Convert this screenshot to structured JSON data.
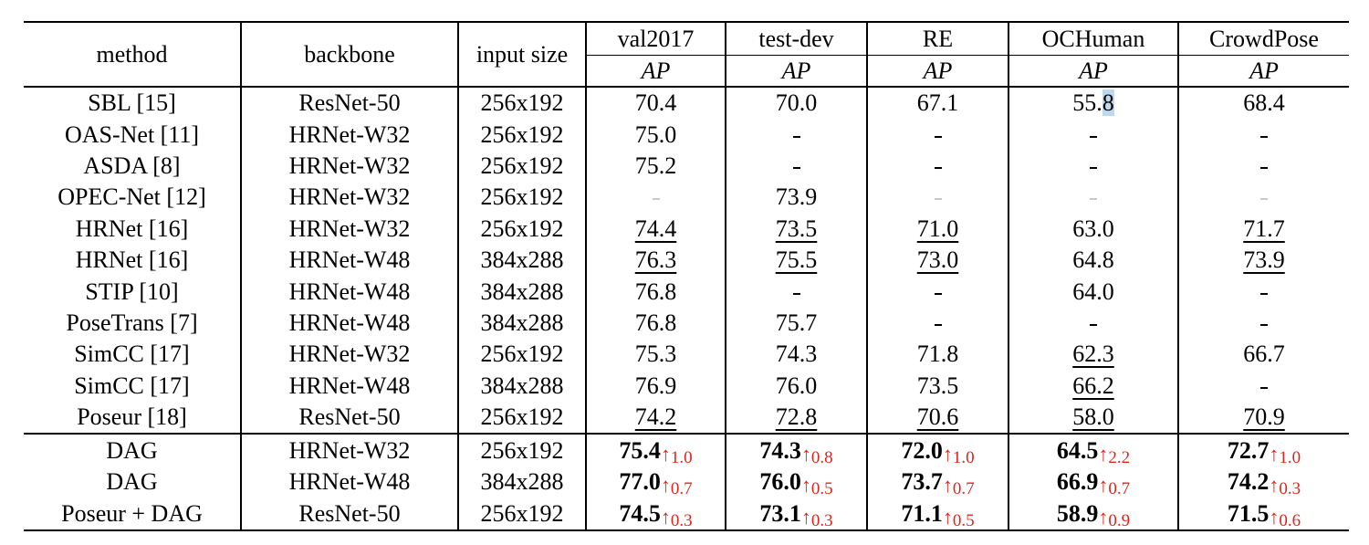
{
  "table": {
    "headers": {
      "method": "method",
      "backbone": "backbone",
      "input_size": "input size",
      "datasets": [
        "val2017",
        "test-dev",
        "RE",
        "OCHuman",
        "CrowdPose"
      ],
      "metric": "AP"
    },
    "rows": [
      {
        "method": "SBL [15]",
        "backbone": "ResNet-50",
        "input": "256x192",
        "cells": [
          {
            "v": "70.4"
          },
          {
            "v": "70.0"
          },
          {
            "v": "67.1"
          },
          {
            "v": "55.8",
            "hl": true
          },
          {
            "v": "68.4"
          }
        ]
      },
      {
        "method": "OAS-Net [11]",
        "backbone": "HRNet-W32",
        "input": "256x192",
        "cells": [
          {
            "v": "75.0"
          },
          {
            "v": "-"
          },
          {
            "v": "-"
          },
          {
            "v": "-"
          },
          {
            "v": "-"
          }
        ]
      },
      {
        "method": "ASDA [8]",
        "backbone": "HRNet-W32",
        "input": "256x192",
        "cells": [
          {
            "v": "75.2"
          },
          {
            "v": "-"
          },
          {
            "v": "-"
          },
          {
            "v": "-"
          },
          {
            "v": "-"
          }
        ]
      },
      {
        "method": "OPEC-Net [12]",
        "backbone": "HRNet-W32",
        "input": "256x192",
        "cells": [
          {
            "v": "-",
            "faint": true
          },
          {
            "v": "73.9"
          },
          {
            "v": "-",
            "faint": true
          },
          {
            "v": "-",
            "faint": true
          },
          {
            "v": "-",
            "faint": true
          }
        ]
      },
      {
        "method": "HRNet [16]",
        "backbone": "HRNet-W32",
        "input": "256x192",
        "cells": [
          {
            "v": "74.4",
            "u": true
          },
          {
            "v": "73.5",
            "u": true
          },
          {
            "v": "71.0",
            "u": true
          },
          {
            "v": "63.0"
          },
          {
            "v": "71.7",
            "u": true
          }
        ]
      },
      {
        "method": "HRNet [16]",
        "backbone": "HRNet-W48",
        "input": "384x288",
        "cells": [
          {
            "v": "76.3",
            "u": true
          },
          {
            "v": "75.5",
            "u": true
          },
          {
            "v": "73.0",
            "u": true
          },
          {
            "v": "64.8"
          },
          {
            "v": "73.9",
            "u": true
          }
        ]
      },
      {
        "method": "STIP [10]",
        "backbone": "HRNet-W48",
        "input": "384x288",
        "cells": [
          {
            "v": "76.8"
          },
          {
            "v": "-"
          },
          {
            "v": "-"
          },
          {
            "v": "64.0"
          },
          {
            "v": "-"
          }
        ]
      },
      {
        "method": "PoseTrans [7]",
        "backbone": "HRNet-W48",
        "input": "384x288",
        "cells": [
          {
            "v": "76.8"
          },
          {
            "v": "75.7"
          },
          {
            "v": "-"
          },
          {
            "v": "-"
          },
          {
            "v": "-"
          }
        ]
      },
      {
        "method": "SimCC [17]",
        "backbone": "HRNet-W32",
        "input": "256x192",
        "cells": [
          {
            "v": "75.3"
          },
          {
            "v": "74.3"
          },
          {
            "v": "71.8"
          },
          {
            "v": "62.3",
            "u": true
          },
          {
            "v": "66.7"
          }
        ]
      },
      {
        "method": "SimCC [17]",
        "backbone": "HRNet-W48",
        "input": "384x288",
        "cells": [
          {
            "v": "76.9"
          },
          {
            "v": "76.0"
          },
          {
            "v": "73.5"
          },
          {
            "v": "66.2",
            "u": true
          },
          {
            "v": "-"
          }
        ]
      },
      {
        "method": "Poseur [18]",
        "backbone": "ResNet-50",
        "input": "256x192",
        "cells": [
          {
            "v": "74.2",
            "u": true
          },
          {
            "v": "72.8",
            "u": true
          },
          {
            "v": "70.6",
            "u": true
          },
          {
            "v": "58.0",
            "u": true
          },
          {
            "v": "70.9",
            "u": true
          }
        ]
      }
    ],
    "dag_rows": [
      {
        "method": "DAG",
        "backbone": "HRNet-W32",
        "input": "256x192",
        "cells": [
          {
            "v": "75.4",
            "g": "1.0"
          },
          {
            "v": "74.3",
            "g": "0.8"
          },
          {
            "v": "72.0",
            "g": "1.0"
          },
          {
            "v": "64.5",
            "g": "2.2"
          },
          {
            "v": "72.7",
            "g": "1.0"
          }
        ]
      },
      {
        "method": "DAG",
        "backbone": "HRNet-W48",
        "input": "384x288",
        "cells": [
          {
            "v": "77.0",
            "g": "0.7"
          },
          {
            "v": "76.0",
            "g": "0.5"
          },
          {
            "v": "73.7",
            "g": "0.7"
          },
          {
            "v": "66.9",
            "g": "0.7"
          },
          {
            "v": "74.2",
            "g": "0.3"
          }
        ]
      },
      {
        "method": "Poseur + DAG",
        "backbone": "ResNet-50",
        "input": "256x192",
        "cells": [
          {
            "v": "74.5",
            "g": "0.3"
          },
          {
            "v": "73.1",
            "g": "0.3"
          },
          {
            "v": "71.1",
            "g": "0.5"
          },
          {
            "v": "58.9",
            "g": "0.9"
          },
          {
            "v": "71.5",
            "g": "0.6"
          }
        ]
      }
    ],
    "gain_arrow": "↑",
    "colors": {
      "gain": "#e0241b",
      "highlight": "#bfd8ee"
    }
  }
}
